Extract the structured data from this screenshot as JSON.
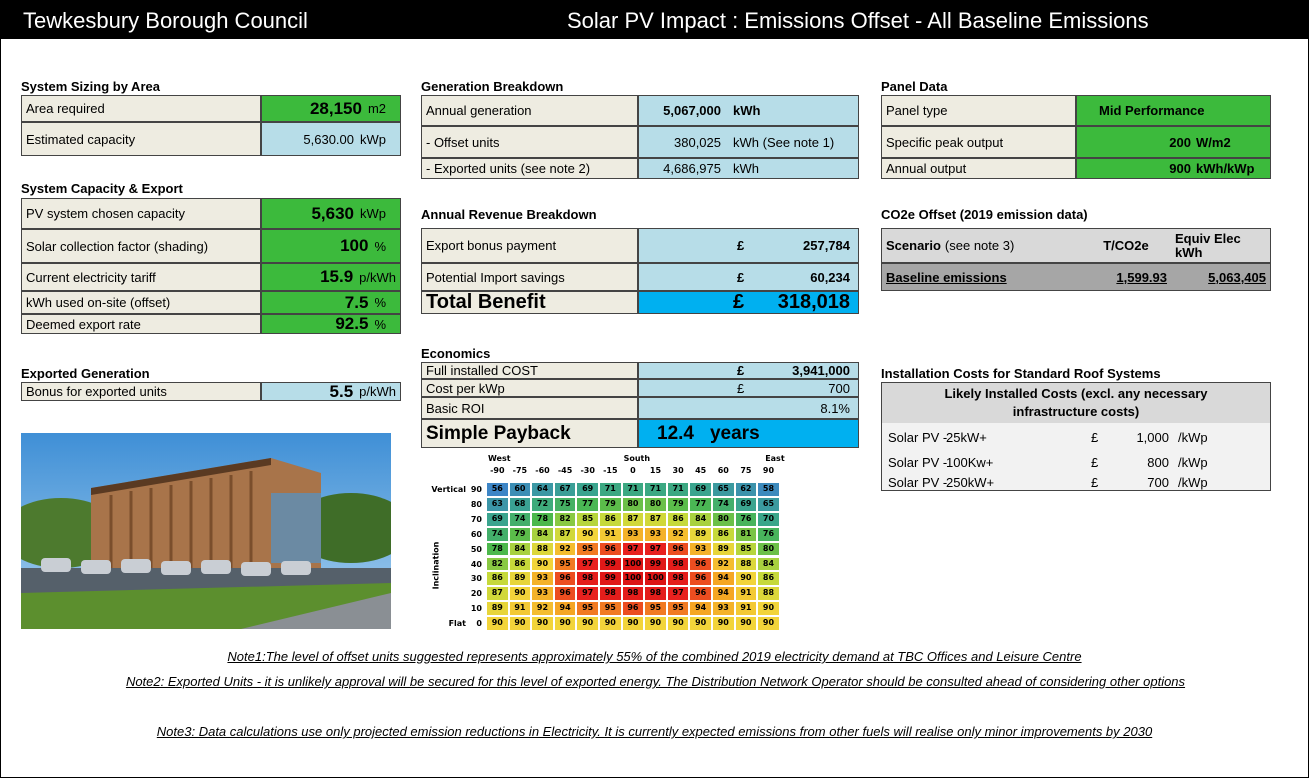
{
  "header": {
    "left": "Tewkesbury Borough Council",
    "right": "Solar PV Impact : Emissions Offset - All Baseline Emissions"
  },
  "sizing": {
    "title": "System Sizing by Area",
    "rows": [
      [
        "Area required",
        "28,150",
        "m2"
      ],
      [
        "Estimated capacity",
        "5,630.00",
        "kWp"
      ]
    ]
  },
  "capacity": {
    "title": "System Capacity & Export",
    "rows": [
      [
        "PV system chosen capacity",
        "5,630",
        "kWp"
      ],
      [
        "Solar collection factor (shading)",
        "100",
        "%"
      ],
      [
        "Current electricity tariff",
        "15.9",
        "p/kWh"
      ],
      [
        "kWh used on-site (offset)",
        "7.5",
        "%"
      ],
      [
        "Deemed export rate",
        "92.5",
        "%"
      ]
    ]
  },
  "exported": {
    "title": "Exported Generation",
    "rows": [
      [
        "Bonus for exported units",
        "5.5",
        "p/kWh"
      ]
    ]
  },
  "generation": {
    "title": "Generation Breakdown",
    "rows": [
      [
        "Annual generation",
        "5,067,000",
        "kWh"
      ],
      [
        "- Offset units",
        "380,025",
        "kWh (See note 1)"
      ],
      [
        "- Exported units (see note 2)",
        "4,686,975",
        "kWh"
      ]
    ]
  },
  "revenue": {
    "title": "Annual Revenue Breakdown",
    "rows": [
      [
        "Export bonus payment",
        "£",
        "257,784"
      ],
      [
        "Potential Import savings",
        "£",
        "60,234"
      ]
    ],
    "total": [
      "Total Benefit",
      "£",
      "318,018"
    ]
  },
  "economics": {
    "title": "Economics",
    "rows": [
      [
        "Full installed COST",
        "£",
        "3,941,000"
      ],
      [
        "Cost per kWp",
        "£",
        "700"
      ],
      [
        "Basic ROI",
        "8.1%"
      ]
    ],
    "payback": [
      "Simple Payback",
      "12.4",
      "years"
    ]
  },
  "panel": {
    "title": "Panel Data",
    "rows": [
      [
        "Panel type",
        "Mid Performance"
      ],
      [
        "Specific peak output",
        "200",
        "W/m2"
      ],
      [
        "Annual output",
        "900",
        "kWh/kWp"
      ]
    ]
  },
  "co2": {
    "title": "CO2e Offset (2019 emission data)",
    "header": [
      "Scenario",
      "(see note 3)",
      "T/CO2e",
      "Equiv Elec kWh"
    ],
    "row": [
      "Baseline emissions",
      "1,599.93",
      "5,063,405"
    ]
  },
  "costs": {
    "title": "Installation Costs for Standard Roof Systems",
    "subtitle": "Likely Installed Costs (excl. any necessary infrastructure costs)",
    "rows": [
      [
        "Solar PV -",
        "25kW+",
        "£",
        "1,000",
        "/kWp"
      ],
      [
        "Solar PV -",
        "100Kw+",
        "£",
        "800",
        "/kWp"
      ],
      [
        "Solar PV -",
        "250kW+",
        "£",
        "700",
        "/kWp"
      ]
    ]
  },
  "heatmap": {
    "directions": [
      "West",
      "South",
      "East"
    ],
    "axis_label": "Inclination",
    "columns": [
      -90,
      -75,
      -60,
      -45,
      -30,
      -15,
      0,
      15,
      30,
      45,
      60,
      75,
      90
    ],
    "row_names": [
      "Vertical",
      null,
      null,
      null,
      null,
      null,
      null,
      null,
      null,
      "Flat"
    ],
    "rows": [
      90,
      80,
      70,
      60,
      50,
      40,
      30,
      20,
      10,
      0
    ],
    "values": [
      [
        56,
        60,
        64,
        67,
        69,
        71,
        71,
        71,
        71,
        69,
        65,
        62,
        58
      ],
      [
        63,
        68,
        72,
        75,
        77,
        79,
        80,
        80,
        79,
        77,
        74,
        69,
        65
      ],
      [
        69,
        74,
        78,
        82,
        85,
        86,
        87,
        87,
        86,
        84,
        80,
        76,
        70
      ],
      [
        74,
        79,
        84,
        87,
        90,
        91,
        93,
        93,
        92,
        89,
        86,
        81,
        76
      ],
      [
        78,
        84,
        88,
        92,
        95,
        96,
        97,
        97,
        96,
        93,
        89,
        85,
        80
      ],
      [
        82,
        86,
        90,
        95,
        97,
        99,
        100,
        99,
        98,
        96,
        92,
        88,
        84
      ],
      [
        86,
        89,
        93,
        96,
        98,
        99,
        100,
        100,
        98,
        96,
        94,
        90,
        86
      ],
      [
        87,
        90,
        93,
        96,
        97,
        98,
        98,
        98,
        97,
        96,
        94,
        91,
        88
      ],
      [
        89,
        91,
        92,
        94,
        95,
        95,
        96,
        95,
        95,
        94,
        93,
        91,
        90
      ],
      [
        90,
        90,
        90,
        90,
        90,
        90,
        90,
        90,
        90,
        90,
        90,
        90,
        90
      ]
    ]
  },
  "notes": [
    "Note1:The level of offset units suggested represents approximately 55% of the combined 2019 electricity demand at TBC Offices and Leisure Centre",
    "Note2: Exported Units - it is unlikely approval will be secured for this level of exported energy. The Distribution Network Operator should be consulted ahead of considering other options",
    "Note3: Data calculations use only projected emission reductions in Electricity.  It is currently expected emissions from other fuels will realise only minor improvements by 2030"
  ]
}
